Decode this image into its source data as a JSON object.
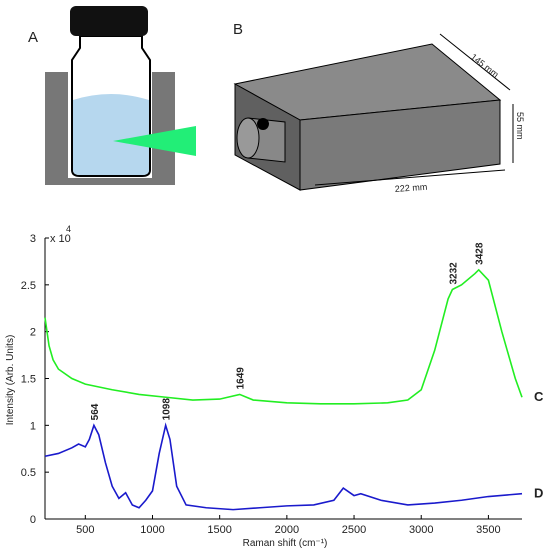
{
  "panels": {
    "a": "A",
    "b": "B"
  },
  "dimensions": {
    "depth": "145 mm",
    "height": "55 mm",
    "width": "222 mm"
  },
  "chart_data": {
    "type": "line",
    "x_label": "Raman shift (cm⁻¹)",
    "y_label": "Intensity (Arb. Units)",
    "y_multiplier": "x 10",
    "y_multiplier_exp": "4",
    "xlim": [
      200,
      3750
    ],
    "ylim": [
      0,
      3
    ],
    "xticks": [
      500,
      1000,
      1500,
      2000,
      2500,
      3000,
      3500
    ],
    "yticks": [
      0,
      0.5,
      1,
      1.5,
      2,
      2.5,
      3
    ],
    "peaks": [
      564,
      1098,
      1649,
      3232,
      3428
    ],
    "series": [
      {
        "name": "C",
        "color": "#22ee22",
        "x": [
          200,
          230,
          260,
          300,
          400,
          500,
          700,
          900,
          1100,
          1300,
          1500,
          1649,
          1750,
          2000,
          2250,
          2500,
          2750,
          2900,
          3000,
          3100,
          3200,
          3232,
          3300,
          3400,
          3428,
          3500,
          3600,
          3700,
          3750
        ],
        "values": [
          2.15,
          1.85,
          1.7,
          1.6,
          1.5,
          1.44,
          1.38,
          1.33,
          1.3,
          1.27,
          1.28,
          1.33,
          1.27,
          1.24,
          1.23,
          1.23,
          1.24,
          1.27,
          1.38,
          1.8,
          2.35,
          2.45,
          2.5,
          2.62,
          2.66,
          2.55,
          2.0,
          1.5,
          1.3
        ]
      },
      {
        "name": "D",
        "color": "#1a1acc",
        "x": [
          200,
          300,
          400,
          450,
          500,
          530,
          564,
          600,
          650,
          700,
          750,
          800,
          850,
          900,
          950,
          1000,
          1050,
          1098,
          1130,
          1180,
          1250,
          1400,
          1600,
          1800,
          2000,
          2200,
          2350,
          2420,
          2500,
          2550,
          2700,
          2900,
          3100,
          3300,
          3500,
          3750
        ],
        "values": [
          0.67,
          0.7,
          0.76,
          0.8,
          0.77,
          0.85,
          1.0,
          0.9,
          0.6,
          0.35,
          0.22,
          0.28,
          0.15,
          0.12,
          0.2,
          0.3,
          0.7,
          1.0,
          0.85,
          0.35,
          0.15,
          0.12,
          0.1,
          0.12,
          0.14,
          0.15,
          0.2,
          0.33,
          0.25,
          0.27,
          0.2,
          0.15,
          0.17,
          0.2,
          0.24,
          0.27
        ]
      }
    ]
  }
}
